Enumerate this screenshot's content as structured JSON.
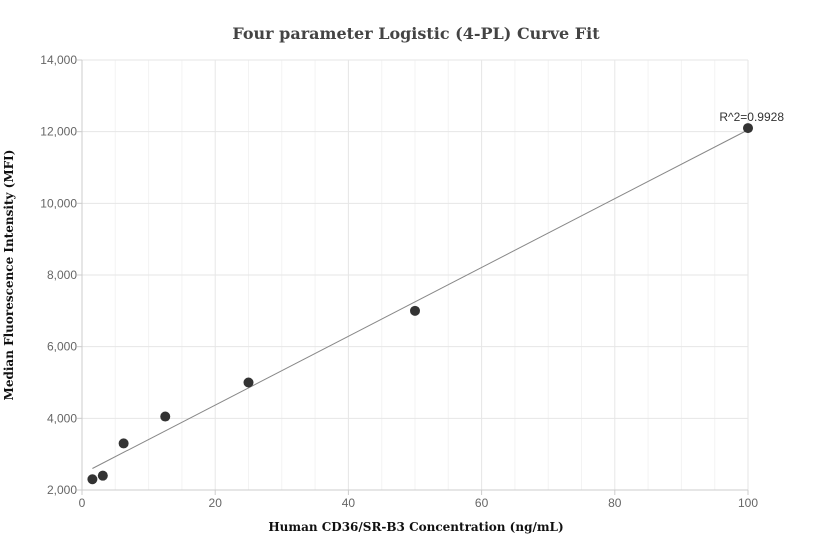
{
  "chart_data": {
    "type": "scatter",
    "title": "Four parameter Logistic (4-PL) Curve Fit",
    "xlabel": "Human CD36/SR-B3 Concentration (ng/mL)",
    "ylabel": "Median Fluorescence Intensity (MFI)",
    "xlim": [
      0,
      100
    ],
    "ylim": [
      2000,
      14000
    ],
    "x_ticks": [
      0,
      20,
      40,
      60,
      80,
      100
    ],
    "y_ticks": [
      2000,
      4000,
      6000,
      8000,
      10000,
      12000,
      14000
    ],
    "x_tick_labels": [
      "0",
      "20",
      "40",
      "60",
      "80",
      "100"
    ],
    "y_tick_labels": [
      "2,000",
      "4,000",
      "6,000",
      "8,000",
      "10,000",
      "12,000",
      "14,000"
    ],
    "grid": true,
    "points": [
      {
        "x": 1.5625,
        "y": 2300
      },
      {
        "x": 3.125,
        "y": 2400
      },
      {
        "x": 6.25,
        "y": 3300
      },
      {
        "x": 12.5,
        "y": 4050
      },
      {
        "x": 25,
        "y": 5000
      },
      {
        "x": 50,
        "y": 7000
      },
      {
        "x": 100,
        "y": 12100
      }
    ],
    "fit_line": {
      "x": [
        1.5625,
        100
      ],
      "y": [
        2600,
        12050
      ]
    },
    "annotation": "R^2=0.9928",
    "colors": {
      "points": "#333333",
      "fit_line": "#888888",
      "grid": "#e6e6e6",
      "axis": "#cccccc"
    }
  }
}
